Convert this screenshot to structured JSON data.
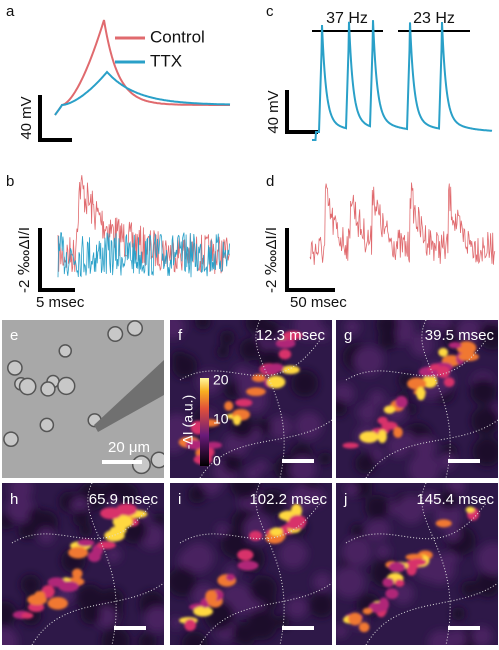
{
  "panels": {
    "a": {
      "label": "a",
      "legend": [
        "Control",
        "TTX"
      ],
      "y_scale": "40 mV"
    },
    "b": {
      "label": "b",
      "y_scale": "-2 ‱ΔI/I",
      "x_scale": "5 msec"
    },
    "c": {
      "label": "c",
      "frequencies": [
        "37 Hz",
        "23 Hz"
      ],
      "y_scale": "40 mV"
    },
    "d": {
      "label": "d",
      "y_scale": "-2 ‱ΔI/I",
      "x_scale": "50 msec"
    },
    "e": {
      "label": "e",
      "scale": "20 μm"
    },
    "f": {
      "label": "f",
      "time": "12.3 msec"
    },
    "g": {
      "label": "g",
      "time": "39.5 msec"
    },
    "h": {
      "label": "h",
      "time": "65.9 msec"
    },
    "i": {
      "label": "i",
      "time": "102.2 msec"
    },
    "j": {
      "label": "j",
      "time": "145.4 msec"
    }
  },
  "colorbar": {
    "label": "-ΔI (a.u.)",
    "ticks": [
      "20",
      "10",
      "0"
    ]
  }
}
